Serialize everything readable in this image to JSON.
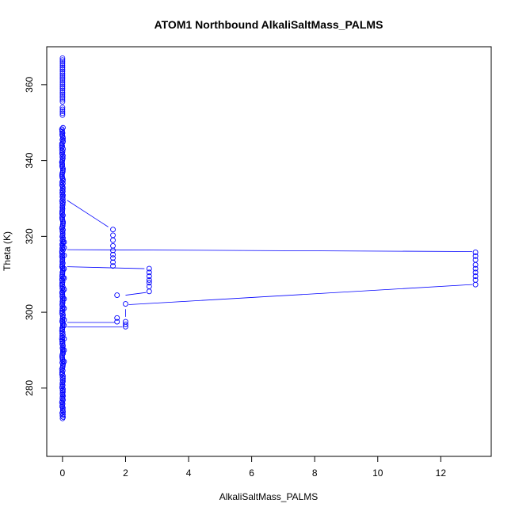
{
  "chart_data": {
    "type": "scatter",
    "title": "ATOM1 Northbound AlkaliSaltMass_PALMS",
    "xlabel": "AlkaliSaltMass_PALMS",
    "ylabel": "Theta (K)",
    "xlim": [
      -0.5,
      13.6
    ],
    "ylim": [
      262,
      370
    ],
    "xticks": [
      0,
      2,
      4,
      6,
      8,
      10,
      12
    ],
    "yticks": [
      280,
      300,
      320,
      340,
      360
    ],
    "grid": false,
    "legend": "none",
    "series_color": "#0000ff",
    "zero_cluster": {
      "x": 0,
      "y_dense": [
        272,
        349
      ],
      "y_sparse": [
        352,
        367
      ]
    },
    "points": [
      {
        "x": 0.05,
        "y": 318.5
      },
      {
        "x": 0.05,
        "y": 317.0
      },
      {
        "x": 0.05,
        "y": 315.0
      },
      {
        "x": 0.05,
        "y": 311.5
      },
      {
        "x": 0.05,
        "y": 309.0
      },
      {
        "x": 0.05,
        "y": 306.0
      },
      {
        "x": 0.05,
        "y": 303.5
      },
      {
        "x": 0.05,
        "y": 301.0
      },
      {
        "x": 0.05,
        "y": 298.0
      },
      {
        "x": 0.05,
        "y": 296.5
      },
      {
        "x": 0.05,
        "y": 293.0
      },
      {
        "x": 0.05,
        "y": 290.0
      },
      {
        "x": 0.05,
        "y": 287.0
      },
      {
        "x": 1.6,
        "y": 321.8
      },
      {
        "x": 1.6,
        "y": 320.3
      },
      {
        "x": 1.6,
        "y": 319.0
      },
      {
        "x": 1.6,
        "y": 317.5
      },
      {
        "x": 1.6,
        "y": 316.3
      },
      {
        "x": 1.6,
        "y": 315.2
      },
      {
        "x": 1.6,
        "y": 314.3
      },
      {
        "x": 1.6,
        "y": 313.2
      },
      {
        "x": 1.6,
        "y": 312.2
      },
      {
        "x": 1.73,
        "y": 304.5
      },
      {
        "x": 1.73,
        "y": 298.5
      },
      {
        "x": 1.73,
        "y": 297.5
      },
      {
        "x": 2.0,
        "y": 302.2
      },
      {
        "x": 2.0,
        "y": 297.5
      },
      {
        "x": 2.0,
        "y": 296.8
      },
      {
        "x": 2.0,
        "y": 296.2
      },
      {
        "x": 2.75,
        "y": 311.5
      },
      {
        "x": 2.75,
        "y": 310.5
      },
      {
        "x": 2.75,
        "y": 309.5
      },
      {
        "x": 2.75,
        "y": 308.5
      },
      {
        "x": 2.75,
        "y": 307.8
      },
      {
        "x": 2.75,
        "y": 306.8
      },
      {
        "x": 2.75,
        "y": 305.5
      },
      {
        "x": 13.1,
        "y": 315.8
      },
      {
        "x": 13.1,
        "y": 314.8
      },
      {
        "x": 13.1,
        "y": 313.8
      },
      {
        "x": 13.1,
        "y": 312.5
      },
      {
        "x": 13.1,
        "y": 311.5
      },
      {
        "x": 13.1,
        "y": 310.5
      },
      {
        "x": 13.1,
        "y": 309.5
      },
      {
        "x": 13.1,
        "y": 308.5
      },
      {
        "x": 13.1,
        "y": 307.3
      }
    ],
    "segments": [
      {
        "x1": 0.15,
        "y1": 329.5,
        "x2": 1.45,
        "y2": 322.5
      },
      {
        "x1": 0.15,
        "y1": 316.5,
        "x2": 13.0,
        "y2": 316.0
      },
      {
        "x1": 0.15,
        "y1": 312.0,
        "x2": 2.6,
        "y2": 311.5
      },
      {
        "x1": 2.0,
        "y1": 304.5,
        "x2": 2.65,
        "y2": 305.2
      },
      {
        "x1": 2.1,
        "y1": 302.0,
        "x2": 13.0,
        "y2": 307.3
      },
      {
        "x1": 0.15,
        "y1": 297.3,
        "x2": 1.65,
        "y2": 297.3
      },
      {
        "x1": 0.15,
        "y1": 296.1,
        "x2": 1.9,
        "y2": 296.1
      },
      {
        "x1": 2.0,
        "y1": 298.8,
        "x2": 2.0,
        "y2": 300.8
      }
    ]
  }
}
